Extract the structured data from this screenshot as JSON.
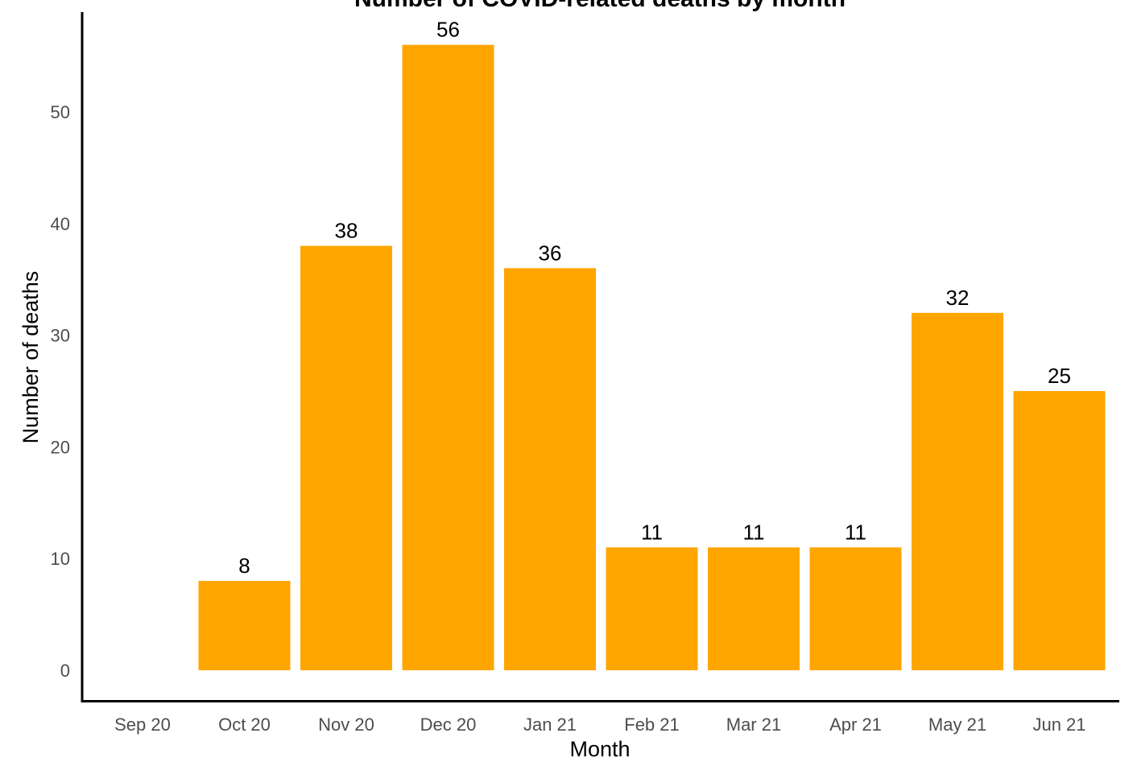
{
  "chart_data": {
    "type": "bar",
    "title": "Number of COVID-related deaths by month",
    "xlabel": "Month",
    "ylabel": "Number of deaths",
    "categories": [
      "Sep 20",
      "Oct 20",
      "Nov 20",
      "Dec 20",
      "Jan 21",
      "Feb 21",
      "Mar 21",
      "Apr 21",
      "May 21",
      "Jun 21"
    ],
    "values": [
      0,
      8,
      38,
      56,
      36,
      11,
      11,
      11,
      32,
      25
    ],
    "data_labels": [
      "",
      "8",
      "38",
      "56",
      "36",
      "11",
      "11",
      "11",
      "32",
      "25"
    ],
    "yticks": [
      0,
      10,
      20,
      30,
      40,
      50
    ],
    "ylim": [
      0,
      58
    ],
    "bar_color": "#FFA500",
    "grid": false,
    "legend": "none"
  }
}
